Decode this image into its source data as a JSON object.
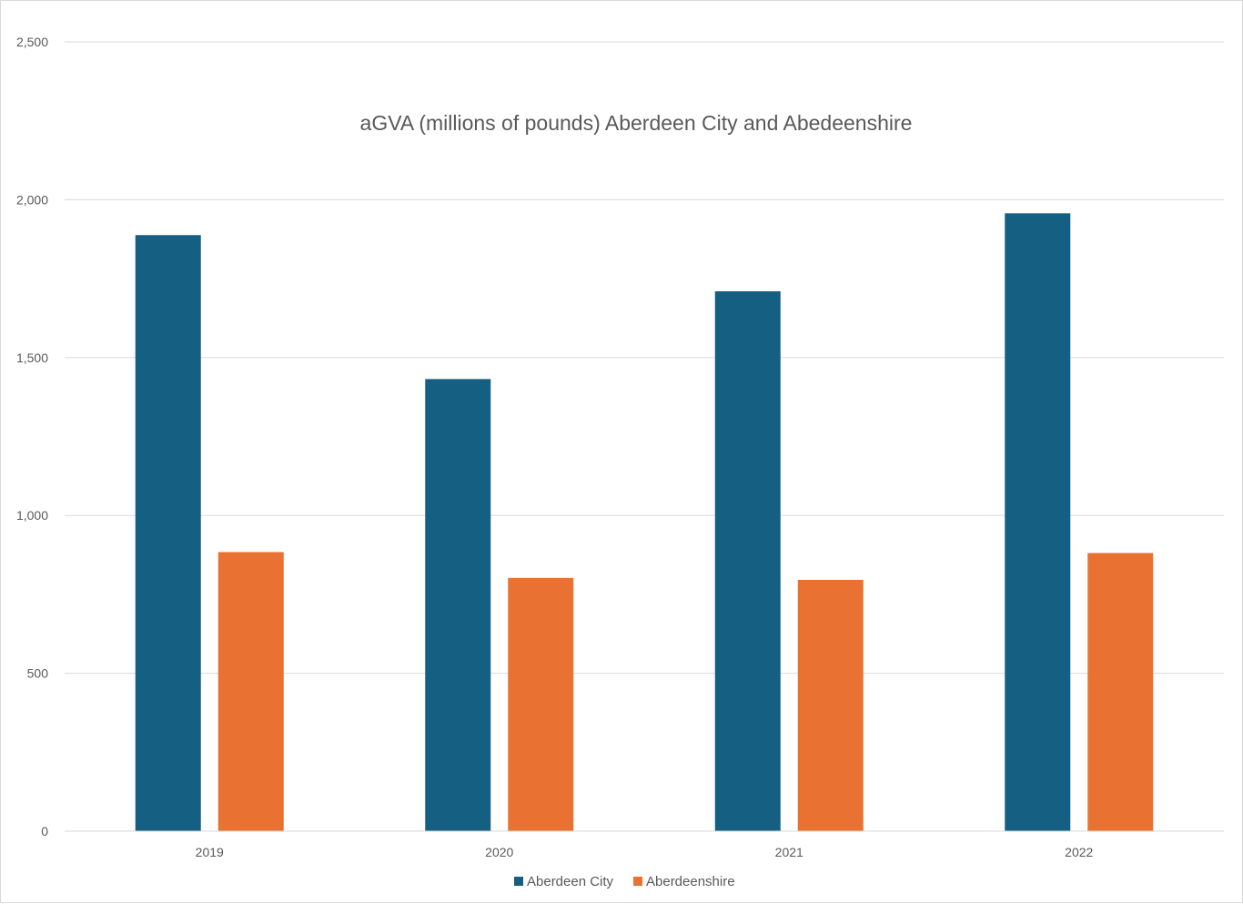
{
  "chart_data": {
    "type": "bar",
    "title": "aGVA (millions of pounds) Aberdeen City and Abedeenshire",
    "categories": [
      "2019",
      "2020",
      "2021",
      "2022"
    ],
    "series": [
      {
        "name": "Aberdeen City",
        "color": "#156082",
        "values": [
          1888,
          1432,
          1710,
          1957
        ]
      },
      {
        "name": "Aberdeenshire",
        "color": "#E97132",
        "values": [
          884,
          802,
          796,
          881
        ]
      }
    ],
    "ylim": [
      0,
      2500
    ],
    "yticks": [
      0,
      500,
      1000,
      1500,
      2000,
      2500
    ],
    "ytick_labels": [
      "0",
      "500",
      "1,000",
      "1,500",
      "2,000",
      "2,500"
    ],
    "grid": true,
    "legend_position": "bottom"
  }
}
